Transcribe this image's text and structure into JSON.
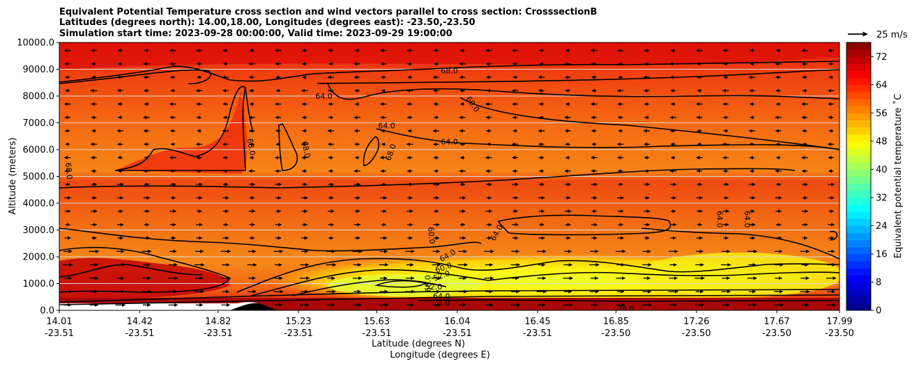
{
  "chart_data": {
    "type": "heatmap",
    "title_lines": [
      "Equivalent Potential Temperature cross section and wind vectors parallel to cross section: CrosssectionB",
      "Latitudes (degrees north): 14.00,18.00, Longitudes (degrees east): -23.50,-23.50",
      "Simulation start time: 2023-09-28 00:00:00, Valid time: 2023-09-29 19:00:00"
    ],
    "ylabel": "Altitude (meters)",
    "xlabel_lines": [
      "Latitude (degrees N)",
      "Longitude (degrees E)"
    ],
    "y_ticks": [
      "0.0",
      "1000.0",
      "2000.0",
      "3000.0",
      "4000.0",
      "5000.0",
      "6000.0",
      "7000.0",
      "8000.0",
      "9000.0",
      "10000.0"
    ],
    "ylim": [
      0,
      10000
    ],
    "x_ticks": [
      {
        "lat": "14.01",
        "lon": "-23.51"
      },
      {
        "lat": "14.42",
        "lon": "-23.51"
      },
      {
        "lat": "14.82",
        "lon": "-23.51"
      },
      {
        "lat": "15.23",
        "lon": "-23.51"
      },
      {
        "lat": "15.63",
        "lon": "-23.51"
      },
      {
        "lat": "16.04",
        "lon": "-23.51"
      },
      {
        "lat": "16.45",
        "lon": "-23.51"
      },
      {
        "lat": "16.85",
        "lon": "-23.50"
      },
      {
        "lat": "17.26",
        "lon": "-23.50"
      },
      {
        "lat": "17.67",
        "lon": "-23.50"
      },
      {
        "lat": "17.99",
        "lon": "-23.50"
      }
    ],
    "colorbar": {
      "label": "Equivalent potential temperature ˚C",
      "range": [
        0,
        76
      ],
      "ticks": [
        "0",
        "8",
        "16",
        "24",
        "32",
        "40",
        "48",
        "56",
        "64",
        "72"
      ]
    },
    "quiver_key": "25 m/s",
    "contour_labels": [
      {
        "text": "68.0",
        "lat": 16.0,
        "alt": 8950,
        "rot": 0
      },
      {
        "text": "64.0",
        "lat": 15.36,
        "alt": 8000,
        "rot": 0
      },
      {
        "text": "60.0",
        "lat": 16.12,
        "alt": 7700,
        "rot": 55
      },
      {
        "text": "64.0",
        "lat": 15.68,
        "alt": 6900,
        "rot": 0
      },
      {
        "text": "64.0",
        "lat": 16.0,
        "alt": 6300,
        "rot": 0
      },
      {
        "text": "68.0",
        "lat": 14.06,
        "alt": 5200,
        "rot": 85
      },
      {
        "text": "68.0",
        "lat": 14.99,
        "alt": 6100,
        "rot": 80
      },
      {
        "text": "68.0",
        "lat": 15.27,
        "alt": 6000,
        "rot": 80
      },
      {
        "text": "68.0",
        "lat": 15.7,
        "alt": 5900,
        "rot": -70
      },
      {
        "text": "60.0",
        "lat": 15.91,
        "alt": 2800,
        "rot": 85
      },
      {
        "text": "64.0",
        "lat": 16.24,
        "alt": 2900,
        "rot": -60
      },
      {
        "text": "64.0",
        "lat": 17.38,
        "alt": 3400,
        "rot": 90
      },
      {
        "text": "64.0",
        "lat": 17.52,
        "alt": 3400,
        "rot": 90
      },
      {
        "text": "64.0",
        "lat": 15.99,
        "alt": 2050,
        "rot": -30
      },
      {
        "text": "60.0",
        "lat": 15.97,
        "alt": 1600,
        "rot": -20
      },
      {
        "text": "52.0",
        "lat": 15.96,
        "alt": 1300,
        "rot": -20
      },
      {
        "text": "52.0",
        "lat": 15.92,
        "alt": 880,
        "rot": 0
      },
      {
        "text": "68.0",
        "lat": 15.89,
        "alt": 1000,
        "rot": -90
      },
      {
        "text": "64.0",
        "lat": 15.96,
        "alt": 530,
        "rot": 0
      },
      {
        "text": "72.0",
        "lat": 15.96,
        "alt": 280,
        "rot": 0
      },
      {
        "text": "76.0",
        "lat": 16.9,
        "alt": 60,
        "rot": 0
      }
    ],
    "layers": [
      {
        "alt_max": 2500,
        "value": 68
      },
      {
        "alt_max": 4600,
        "value": 62
      },
      {
        "alt_max": 7200,
        "value": 64
      },
      {
        "alt_max": 10000,
        "value": 70
      }
    ],
    "yellow_core": {
      "lat_range": [
        15.3,
        17.99
      ],
      "alt_range": [
        300,
        1800
      ],
      "value": 50
    }
  }
}
